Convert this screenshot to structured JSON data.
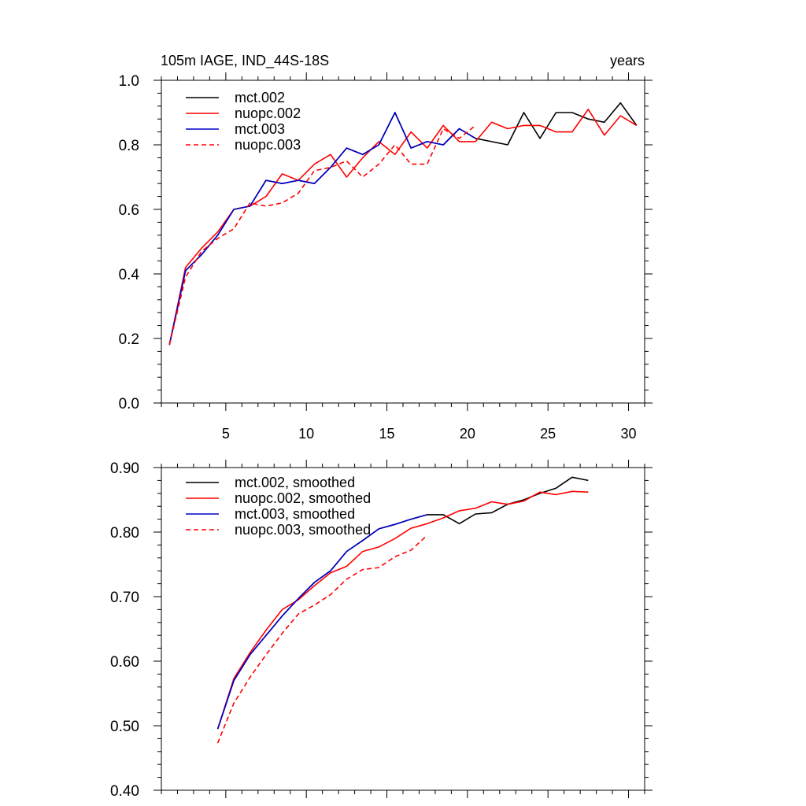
{
  "figure": {
    "title_left": "105m IAGE, IND_44S-18S",
    "title_right": "years"
  },
  "colors": {
    "mct_002": "#000000",
    "nuopc_002": "#ff0000",
    "mct_003": "#0000cc",
    "nuopc_003": "#ff0000"
  },
  "chart_data": [
    {
      "type": "line",
      "title": "105m IAGE, IND_44S-18S",
      "xlabel": "years",
      "ylabel": "",
      "xlim": [
        1,
        31
      ],
      "ylim": [
        0.0,
        1.0
      ],
      "x_ticks": [
        5,
        10,
        15,
        20,
        25,
        30
      ],
      "x_tick_labels": [
        "5",
        "10",
        "15",
        "20",
        "25",
        "30"
      ],
      "y_ticks": [
        0.0,
        0.2,
        0.4,
        0.6,
        0.8,
        1.0
      ],
      "y_tick_labels": [
        "0.0",
        "0.2",
        "0.4",
        "0.6",
        "0.8",
        "1.0"
      ],
      "legend_position": "top-left",
      "series": [
        {
          "name": "mct.002",
          "color": "#000000",
          "dash": "solid",
          "x": [
            1.5,
            2.5,
            3.5,
            4.5,
            5.5,
            6.5,
            7.5,
            8.5,
            9.5,
            10.5,
            11.5,
            12.5,
            13.5,
            14.5,
            15.5,
            16.5,
            17.5,
            18.5,
            19.5,
            20.5,
            21.5,
            22.5,
            23.5,
            24.5,
            25.5,
            26.5,
            27.5,
            28.5,
            29.5,
            30.5
          ],
          "values": [
            0.18,
            0.41,
            0.46,
            0.52,
            0.6,
            0.61,
            0.69,
            0.68,
            0.69,
            0.68,
            0.73,
            0.79,
            0.77,
            0.8,
            0.9,
            0.79,
            0.81,
            0.8,
            0.85,
            0.82,
            0.81,
            0.8,
            0.9,
            0.82,
            0.9,
            0.9,
            0.88,
            0.87,
            0.93,
            0.86
          ]
        },
        {
          "name": "nuopc.002",
          "color": "#ff0000",
          "dash": "solid",
          "x": [
            1.5,
            2.5,
            3.5,
            4.5,
            5.5,
            6.5,
            7.5,
            8.5,
            9.5,
            10.5,
            11.5,
            12.5,
            13.5,
            14.5,
            15.5,
            16.5,
            17.5,
            18.5,
            19.5,
            20.5,
            21.5,
            22.5,
            23.5,
            24.5,
            25.5,
            26.5,
            27.5,
            28.5,
            29.5,
            30.5
          ],
          "values": [
            0.18,
            0.42,
            0.48,
            0.53,
            0.6,
            0.61,
            0.64,
            0.71,
            0.69,
            0.74,
            0.77,
            0.7,
            0.76,
            0.81,
            0.77,
            0.84,
            0.79,
            0.86,
            0.81,
            0.81,
            0.87,
            0.85,
            0.86,
            0.86,
            0.84,
            0.84,
            0.91,
            0.83,
            0.89,
            0.86
          ]
        },
        {
          "name": "mct.003",
          "color": "#0000cc",
          "dash": "solid",
          "x": [
            1.5,
            2.5,
            3.5,
            4.5,
            5.5,
            6.5,
            7.5,
            8.5,
            9.5,
            10.5,
            11.5,
            12.5,
            13.5,
            14.5,
            15.5,
            16.5,
            17.5,
            18.5,
            19.5,
            20.5
          ],
          "values": [
            0.18,
            0.41,
            0.46,
            0.52,
            0.6,
            0.61,
            0.69,
            0.68,
            0.69,
            0.68,
            0.73,
            0.79,
            0.77,
            0.8,
            0.9,
            0.79,
            0.81,
            0.8,
            0.85,
            0.82
          ]
        },
        {
          "name": "nuopc.003",
          "color": "#ff0000",
          "dash": "dashed",
          "x": [
            1.5,
            2.5,
            3.5,
            4.5,
            5.5,
            6.5,
            7.5,
            8.5,
            9.5,
            10.5,
            11.5,
            12.5,
            13.5,
            14.5,
            15.5,
            16.5,
            17.5,
            18.5,
            19.5,
            20.5
          ],
          "values": [
            0.18,
            0.39,
            0.47,
            0.51,
            0.54,
            0.62,
            0.61,
            0.62,
            0.65,
            0.72,
            0.73,
            0.75,
            0.7,
            0.74,
            0.8,
            0.74,
            0.74,
            0.85,
            0.82,
            0.86
          ]
        }
      ]
    },
    {
      "type": "line",
      "title": "",
      "xlabel": "",
      "ylabel": "",
      "xlim": [
        1,
        31
      ],
      "ylim": [
        0.4,
        0.9
      ],
      "x_ticks": [
        5,
        10,
        15,
        20,
        25,
        30
      ],
      "y_ticks": [
        0.4,
        0.5,
        0.6,
        0.7,
        0.8,
        0.9
      ],
      "y_tick_labels": [
        "0.40",
        "0.50",
        "0.60",
        "0.70",
        "0.80",
        "0.90"
      ],
      "legend_position": "top-left",
      "series": [
        {
          "name": "mct.002, smoothed",
          "color": "#000000",
          "dash": "solid",
          "x": [
            4.5,
            5.5,
            6.5,
            7.5,
            8.5,
            9.5,
            10.5,
            11.5,
            12.5,
            13.5,
            14.5,
            15.5,
            16.5,
            17.5,
            18.5,
            19.5,
            20.5,
            21.5,
            22.5,
            23.5,
            24.5,
            25.5,
            26.5,
            27.5
          ],
          "values": [
            0.495,
            0.57,
            0.61,
            0.64,
            0.67,
            0.697,
            0.722,
            0.74,
            0.77,
            0.787,
            0.805,
            0.812,
            0.82,
            0.827,
            0.827,
            0.813,
            0.828,
            0.83,
            0.843,
            0.85,
            0.86,
            0.868,
            0.885,
            0.88
          ]
        },
        {
          "name": "nuopc.002, smoothed",
          "color": "#ff0000",
          "dash": "solid",
          "x": [
            4.5,
            5.5,
            6.5,
            7.5,
            8.5,
            9.5,
            10.5,
            11.5,
            12.5,
            13.5,
            14.5,
            15.5,
            16.5,
            17.5,
            18.5,
            19.5,
            20.5,
            21.5,
            22.5,
            23.5,
            24.5,
            25.5,
            26.5,
            27.5
          ],
          "values": [
            0.495,
            0.573,
            0.613,
            0.648,
            0.68,
            0.695,
            0.717,
            0.737,
            0.747,
            0.77,
            0.777,
            0.79,
            0.806,
            0.813,
            0.822,
            0.833,
            0.837,
            0.847,
            0.843,
            0.848,
            0.862,
            0.858,
            0.863,
            0.862
          ]
        },
        {
          "name": "mct.003, smoothed",
          "color": "#0000cc",
          "dash": "solid",
          "x": [
            4.5,
            5.5,
            6.5,
            7.5,
            8.5,
            9.5,
            10.5,
            11.5,
            12.5,
            13.5,
            14.5,
            15.5,
            16.5,
            17.5
          ],
          "values": [
            0.495,
            0.57,
            0.61,
            0.64,
            0.67,
            0.697,
            0.722,
            0.74,
            0.77,
            0.787,
            0.805,
            0.812,
            0.82,
            0.827
          ]
        },
        {
          "name": "nuopc.003, smoothed",
          "color": "#ff0000",
          "dash": "dashed",
          "x": [
            4.5,
            5.5,
            6.5,
            7.5,
            8.5,
            9.5,
            10.5,
            11.5,
            12.5,
            13.5,
            14.5,
            15.5,
            16.5,
            17.5
          ],
          "values": [
            0.473,
            0.535,
            0.575,
            0.61,
            0.643,
            0.673,
            0.687,
            0.703,
            0.727,
            0.742,
            0.745,
            0.762,
            0.772,
            0.795
          ]
        }
      ]
    }
  ]
}
